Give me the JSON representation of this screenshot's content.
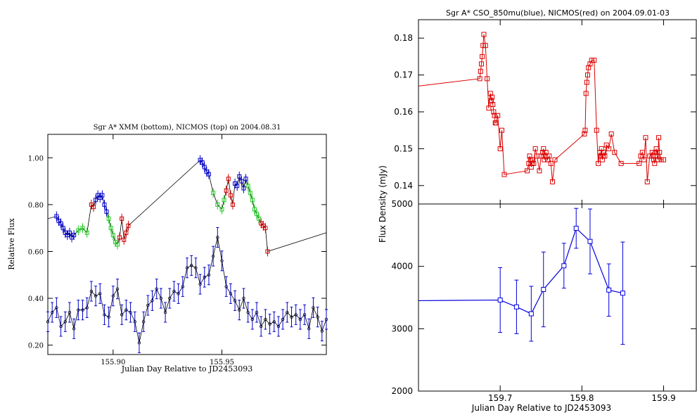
{
  "chart_data": [
    {
      "type": "line",
      "title": "Sgr A* XMM (bottom), NICMOS (top) on 2004.08.31",
      "xlabel": "Julian Day Relative to JD2453093",
      "ylabel": "Relative Flux",
      "xlim": [
        155.87,
        155.998
      ],
      "ylim": [
        0.16,
        1.1
      ],
      "xticks": [
        155.9,
        155.95
      ],
      "yticks": [
        0.2,
        0.4,
        0.6,
        0.8,
        1.0
      ],
      "tick_labels_x": [
        "155.90",
        "155.95"
      ],
      "tick_labels_y": [
        "0.20",
        "0.40",
        "0.60",
        "0.80",
        "1.00"
      ],
      "series": [
        {
          "color": "#000000",
          "x": [
            155.87,
            155.874,
            155.875,
            155.876,
            155.877,
            155.878,
            155.879,
            155.88,
            155.881,
            155.882,
            155.884,
            155.886,
            155.888,
            155.89,
            155.891,
            155.892,
            155.893,
            155.894,
            155.895,
            155.896,
            155.897,
            155.898,
            155.899,
            155.9,
            155.901,
            155.902,
            155.903,
            155.904,
            155.905,
            155.906,
            155.907,
            155.94,
            155.941,
            155.942,
            155.943,
            155.944,
            155.946,
            155.948,
            155.95,
            155.951,
            155.952,
            155.953,
            155.954,
            155.955,
            155.956,
            155.957,
            155.958,
            155.959,
            155.96,
            155.961,
            155.962,
            155.963,
            155.964,
            155.965,
            155.966,
            155.967,
            155.968,
            155.969,
            155.97,
            155.971,
            155.998
          ],
          "y": [
            0.74,
            0.75,
            0.73,
            0.72,
            0.7,
            0.68,
            0.67,
            0.68,
            0.66,
            0.67,
            0.69,
            0.7,
            0.68,
            0.8,
            0.79,
            0.82,
            0.84,
            0.83,
            0.84,
            0.8,
            0.77,
            0.74,
            0.7,
            0.67,
            0.64,
            0.63,
            0.66,
            0.74,
            0.65,
            0.68,
            0.71,
            0.99,
            0.98,
            0.96,
            0.94,
            0.93,
            0.85,
            0.8,
            0.78,
            0.82,
            0.86,
            0.91,
            0.84,
            0.8,
            0.89,
            0.88,
            0.92,
            0.9,
            0.87,
            0.91,
            0.88,
            0.85,
            0.82,
            0.78,
            0.76,
            0.74,
            0.72,
            0.71,
            0.7,
            0.6,
            0.68
          ]
        },
        {
          "color": "#0000cc",
          "x": [
            155.87,
            155.872,
            155.874,
            155.876,
            155.878,
            155.88,
            155.882,
            155.884,
            155.886,
            155.888,
            155.89,
            155.892,
            155.894,
            155.896,
            155.898,
            155.9,
            155.902,
            155.904,
            155.906,
            155.908,
            155.91,
            155.912,
            155.914,
            155.916,
            155.918,
            155.92,
            155.922,
            155.924,
            155.926,
            155.928,
            155.93,
            155.932,
            155.934,
            155.936,
            155.938,
            155.94,
            155.942,
            155.944,
            155.946,
            155.948,
            155.95,
            155.952,
            155.954,
            155.956,
            155.958,
            155.96,
            155.962,
            155.964,
            155.966,
            155.968,
            155.97,
            155.972,
            155.974,
            155.976,
            155.978,
            155.98,
            155.982,
            155.984,
            155.986,
            155.988,
            155.99,
            155.992,
            155.994,
            155.996,
            155.998
          ],
          "y": [
            0.3,
            0.34,
            0.36,
            0.28,
            0.3,
            0.34,
            0.27,
            0.35,
            0.35,
            0.36,
            0.43,
            0.41,
            0.42,
            0.33,
            0.32,
            0.41,
            0.44,
            0.33,
            0.35,
            0.34,
            0.3,
            0.21,
            0.3,
            0.37,
            0.39,
            0.44,
            0.4,
            0.34,
            0.4,
            0.43,
            0.42,
            0.45,
            0.53,
            0.54,
            0.53,
            0.46,
            0.49,
            0.5,
            0.58,
            0.66,
            0.56,
            0.45,
            0.42,
            0.39,
            0.35,
            0.4,
            0.34,
            0.31,
            0.34,
            0.28,
            0.31,
            0.29,
            0.3,
            0.28,
            0.31,
            0.34,
            0.32,
            0.33,
            0.31,
            0.33,
            0.27,
            0.36,
            0.32,
            0.26,
            0.31
          ]
        }
      ],
      "marker_colors": {
        "blue": "#0000cc",
        "red": "#cc0000",
        "green": "#22cc22"
      }
    },
    {
      "type": "line",
      "title": "Sgr A* CSO_850mu(blue), NICMOS(red) on 2004.09.01-03",
      "xlabel": "Julian Day Relative to JD2453093",
      "ylabel": "Flux Density (mJy)",
      "panels": [
        {
          "position": "top",
          "ylim": [
            0.135,
            0.185
          ],
          "yticks": [
            0.14,
            0.15,
            0.16,
            0.17,
            0.18
          ],
          "tick_labels_y": [
            "0.14",
            "0.15",
            "0.16",
            "0.17",
            "0.18"
          ],
          "series": [
            {
              "color": "#dd0000",
              "x": [
                159.6,
                159.675,
                159.676,
                159.677,
                159.678,
                159.679,
                159.68,
                159.682,
                159.684,
                159.686,
                159.688,
                159.689,
                159.69,
                159.691,
                159.692,
                159.693,
                159.694,
                159.695,
                159.697,
                159.7,
                159.702,
                159.705,
                159.733,
                159.735,
                159.736,
                159.737,
                159.738,
                159.739,
                159.74,
                159.741,
                159.743,
                159.745,
                159.748,
                159.75,
                159.752,
                159.753,
                159.754,
                159.755,
                159.756,
                159.758,
                159.76,
                159.762,
                159.764,
                159.767,
                159.803,
                159.804,
                159.805,
                159.806,
                159.807,
                159.808,
                159.81,
                159.812,
                159.815,
                159.818,
                159.82,
                159.822,
                159.823,
                159.824,
                159.825,
                159.826,
                159.827,
                159.828,
                159.83,
                159.833,
                159.836,
                159.84,
                159.848,
                159.87,
                159.872,
                159.874,
                159.876,
                159.878,
                159.88,
                159.883,
                159.886,
                159.887,
                159.888,
                159.889,
                159.89,
                159.891,
                159.892,
                159.893,
                159.894,
                159.895,
                159.897,
                159.9
              ],
              "y": [
                0.167,
                0.169,
                0.171,
                0.173,
                0.175,
                0.178,
                0.181,
                0.178,
                0.169,
                0.161,
                0.165,
                0.163,
                0.164,
                0.162,
                0.16,
                0.159,
                0.157,
                0.157,
                0.159,
                0.15,
                0.155,
                0.143,
                0.144,
                0.146,
                0.148,
                0.147,
                0.145,
                0.146,
                0.147,
                0.146,
                0.15,
                0.148,
                0.144,
                0.148,
                0.149,
                0.15,
                0.147,
                0.148,
                0.149,
                0.147,
                0.148,
                0.146,
                0.141,
                0.147,
                0.154,
                0.155,
                0.165,
                0.168,
                0.17,
                0.172,
                0.173,
                0.174,
                0.174,
                0.155,
                0.146,
                0.149,
                0.148,
                0.15,
                0.147,
                0.148,
                0.149,
                0.148,
                0.151,
                0.15,
                0.154,
                0.149,
                0.146,
                0.146,
                0.148,
                0.149,
                0.147,
                0.153,
                0.141,
                0.148,
                0.149,
                0.148,
                0.147,
                0.146,
                0.149,
                0.15,
                0.148,
                0.147,
                0.153,
                0.149,
                0.147,
                0.147
              ]
            }
          ]
        },
        {
          "position": "bottom",
          "ylim": [
            2000,
            5000
          ],
          "yticks": [
            2000,
            3000,
            4000,
            5000
          ],
          "tick_labels_y": [
            "2000",
            "3000",
            "4000",
            "5000"
          ],
          "series": [
            {
              "color": "#0000dd",
              "x": [
                159.6,
                159.7,
                159.72,
                159.738,
                159.753,
                159.778,
                159.793,
                159.81,
                159.833,
                159.85
              ],
              "y": [
                3450,
                3460,
                3350,
                3240,
                3630,
                4010,
                4610,
                4400,
                3620,
                3570
              ],
              "err": [
                0,
                520,
                430,
                440,
                600,
                360,
                320,
                520,
                420,
                820
              ]
            }
          ]
        }
      ],
      "xlim": [
        159.6,
        159.94
      ],
      "xticks": [
        159.7,
        159.8,
        159.9
      ],
      "tick_labels_x": [
        "159.7",
        "159.8",
        "159.9"
      ]
    }
  ]
}
